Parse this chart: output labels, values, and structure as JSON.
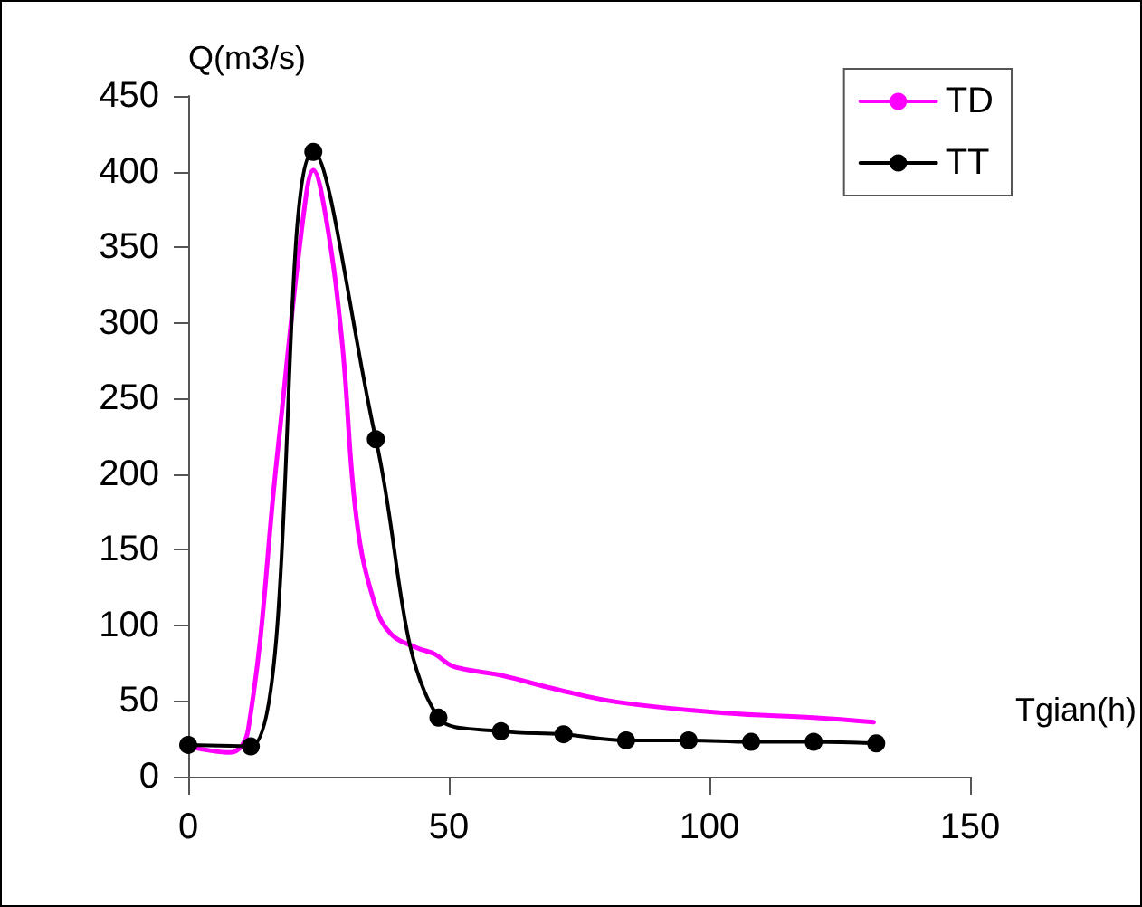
{
  "chart_data": {
    "type": "line",
    "xlabel": "Tgian(h)",
    "ylabel": "Q(m3/s)",
    "xlim": [
      0,
      150
    ],
    "xticks": [
      0,
      50,
      100,
      150
    ],
    "ylim": [
      0,
      450
    ],
    "yticks": [
      0,
      50,
      100,
      150,
      200,
      250,
      300,
      350,
      400,
      450
    ],
    "grid": false,
    "legend": "top right",
    "series": [
      {
        "name": "TD",
        "color": "#ff00ff",
        "marker": "none",
        "x": [
          0,
          8,
          11.5,
          17,
          22,
          24,
          26.5,
          29.5,
          32.3,
          35.8,
          39,
          44,
          47.3,
          50.8,
          60,
          71.5,
          83,
          103,
          120,
          131.5
        ],
        "values": [
          20,
          16,
          31,
          210,
          368,
          401,
          368,
          288,
          170,
          114,
          94,
          85,
          81,
          73,
          67,
          57,
          49,
          42,
          39,
          36
        ]
      },
      {
        "name": "TT",
        "color": "#000000",
        "marker": "circle",
        "x": [
          0,
          12,
          24,
          36,
          48,
          60,
          72,
          84,
          96,
          108,
          120,
          132
        ],
        "values": [
          21,
          20,
          413,
          223,
          39,
          30,
          28,
          24,
          24,
          23,
          23,
          22
        ]
      }
    ]
  }
}
